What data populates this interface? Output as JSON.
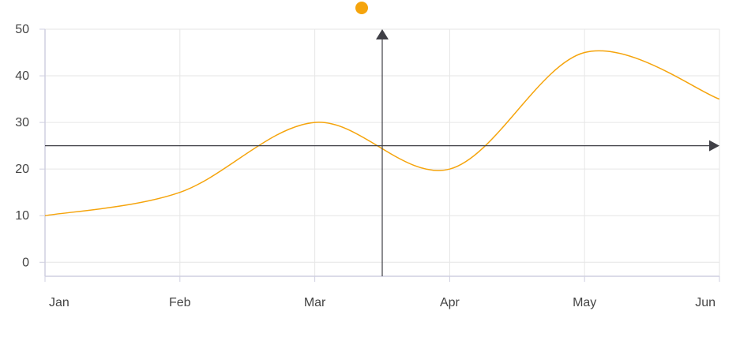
{
  "chart_data": {
    "type": "line",
    "categories": [
      "Jan",
      "Feb",
      "Mar",
      "Apr",
      "May",
      "Jun"
    ],
    "y_ticks": [
      0,
      10,
      20,
      30,
      40,
      50
    ],
    "series": [
      {
        "x": [
          0,
          1,
          2,
          3,
          4,
          5
        ],
        "values": [
          10,
          15,
          30,
          20,
          45,
          35
        ]
      }
    ],
    "ylim": [
      -3,
      50
    ],
    "grid": true,
    "legend_marker": true,
    "crosshair": {
      "x": 2.5,
      "y": 25
    },
    "colors": {
      "series": "#f5a40c",
      "grid": "#e6e6e6",
      "axis": "#cfcfe0",
      "crosshair": "#3f3f46",
      "label": "#444444"
    }
  }
}
